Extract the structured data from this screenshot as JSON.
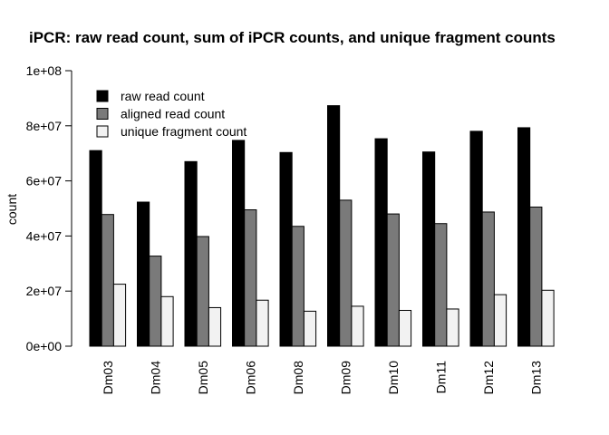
{
  "chart_data": {
    "type": "bar",
    "title": "iPCR: raw read count, sum of iPCR counts, and unique fragment counts",
    "xlabel": "",
    "ylabel": "count",
    "ylim": [
      0,
      100000000
    ],
    "yticks": [
      0,
      20000000,
      40000000,
      60000000,
      80000000,
      100000000
    ],
    "ytick_labels": [
      "0e+00",
      "2e+07",
      "4e+07",
      "6e+07",
      "8e+07",
      "1e+08"
    ],
    "categories": [
      "Dm03",
      "Dm04",
      "Dm05",
      "Dm06",
      "Dm08",
      "Dm09",
      "Dm10",
      "Dm11",
      "Dm12",
      "Dm13"
    ],
    "series": [
      {
        "name": "raw read count",
        "color": "#000000",
        "values": [
          71000000,
          52300000,
          67000000,
          74700000,
          70300000,
          87300000,
          75300000,
          70500000,
          78000000,
          79300000
        ]
      },
      {
        "name": "aligned read count",
        "color": "#7a7a7a",
        "values": [
          47800000,
          32700000,
          39800000,
          49500000,
          43500000,
          53000000,
          48000000,
          44500000,
          48700000,
          50500000
        ]
      },
      {
        "name": "unique fragment count",
        "color": "#f2f2f2",
        "values": [
          22500000,
          18000000,
          14000000,
          16700000,
          12700000,
          14500000,
          13000000,
          13500000,
          18700000,
          20300000
        ]
      }
    ],
    "legend_position": "top-left",
    "grid": false
  }
}
